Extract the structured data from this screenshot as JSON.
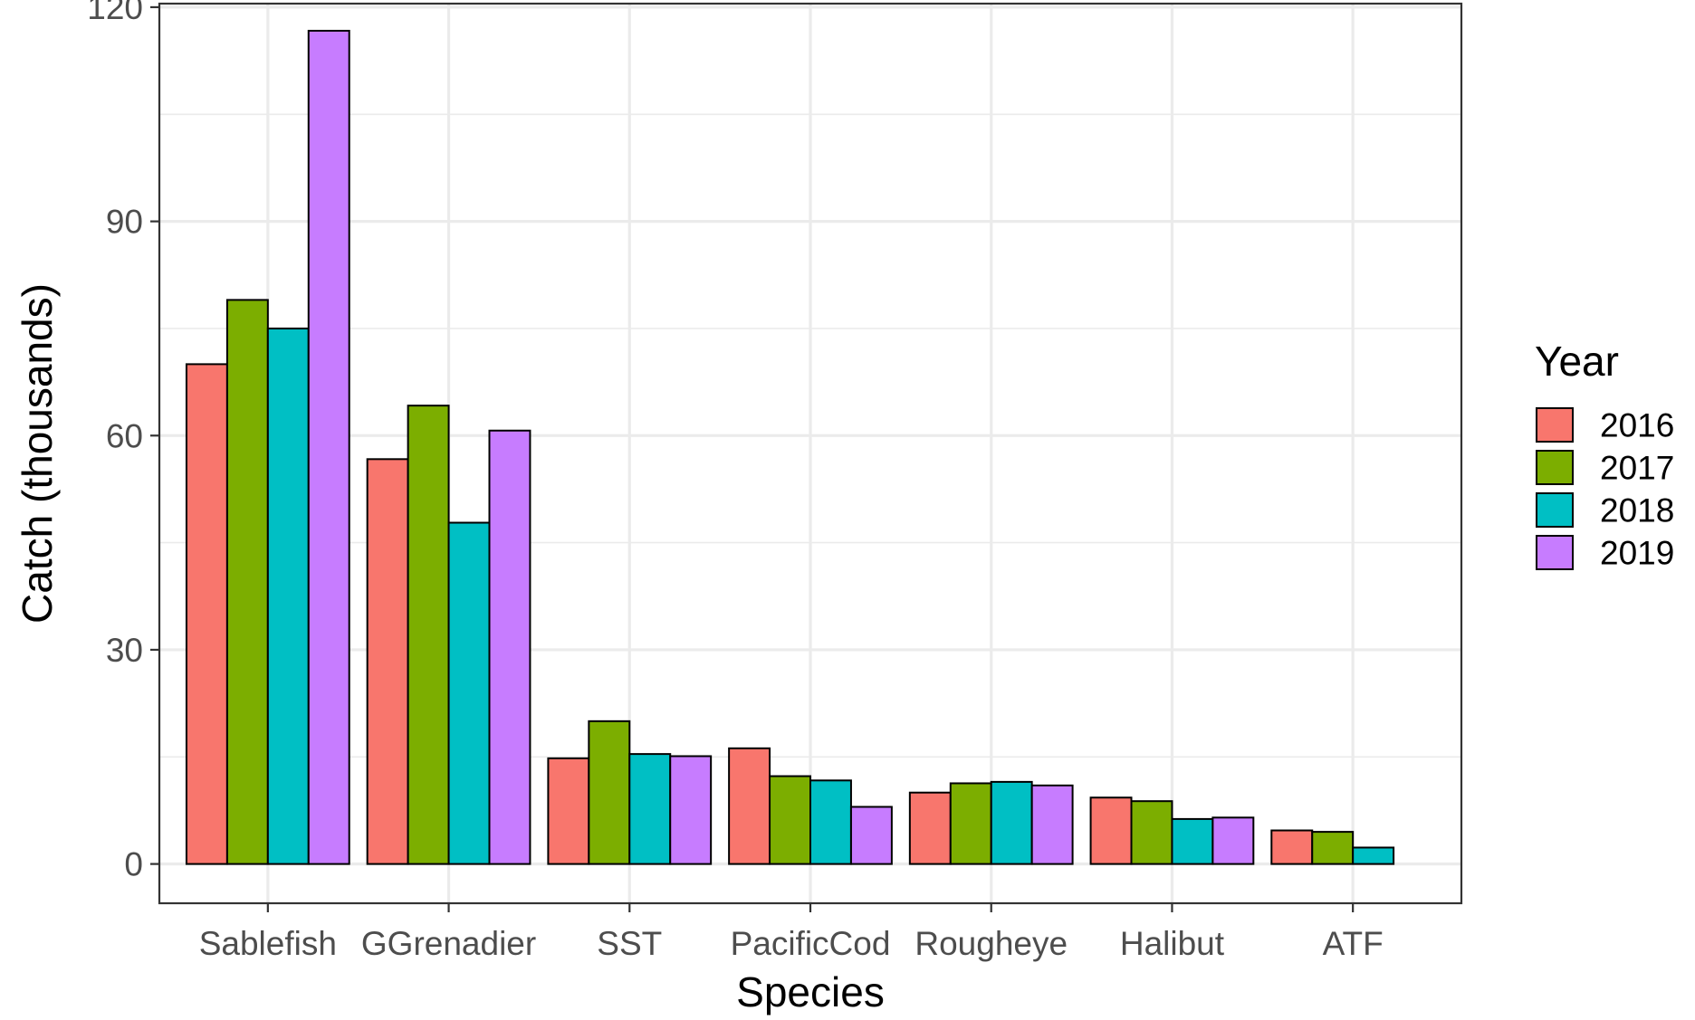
{
  "chart_data": {
    "type": "bar",
    "title": "",
    "xlabel": "Species",
    "ylabel": "Catch (thousands)",
    "ylim": [
      -5.5,
      120.5
    ],
    "yticks": [
      0,
      30,
      60,
      90,
      120
    ],
    "grid": true,
    "legend": {
      "title": "Year",
      "position": "right"
    },
    "categories": [
      "Sablefish",
      "GGrenadier",
      "SST",
      "PacificCod",
      "Rougheye",
      "Halibut",
      "ATF"
    ],
    "series": [
      {
        "name": "2016",
        "color": "#F8766D",
        "values": [
          70.0,
          56.7,
          14.8,
          16.2,
          10.0,
          9.3,
          4.7
        ]
      },
      {
        "name": "2017",
        "color": "#7CAE00",
        "values": [
          79.0,
          64.2,
          20.0,
          12.3,
          11.3,
          8.8,
          4.5
        ]
      },
      {
        "name": "2018",
        "color": "#00BFC4",
        "values": [
          75.0,
          47.8,
          15.4,
          11.7,
          11.5,
          6.3,
          2.3
        ]
      },
      {
        "name": "2019",
        "color": "#C77CFF",
        "values": [
          116.7,
          60.7,
          15.1,
          8.0,
          11.0,
          6.5,
          0
        ]
      }
    ]
  }
}
